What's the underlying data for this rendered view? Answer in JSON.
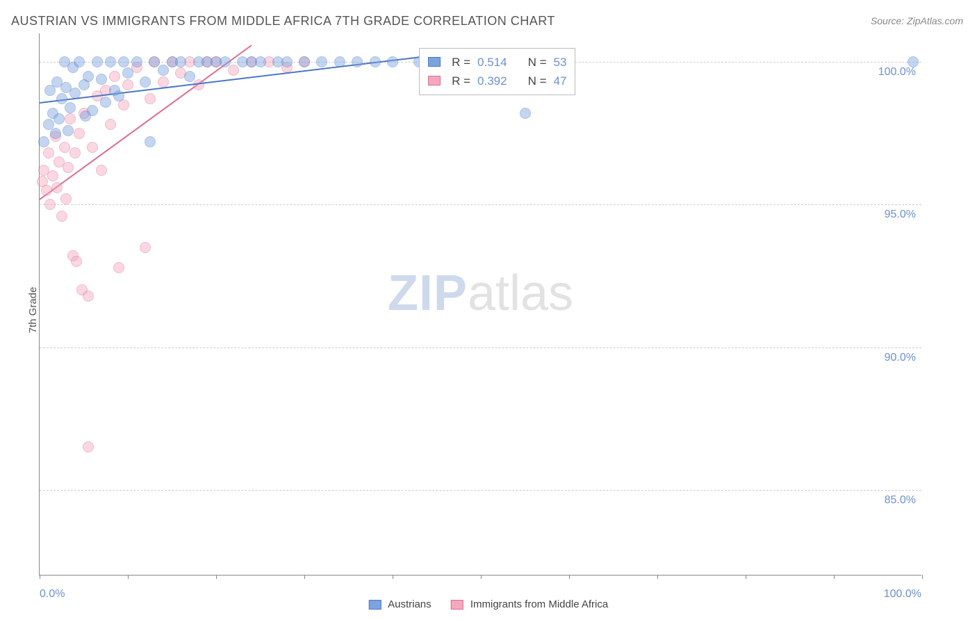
{
  "title": "AUSTRIAN VS IMMIGRANTS FROM MIDDLE AFRICA 7TH GRADE CORRELATION CHART",
  "source": "Source: ZipAtlas.com",
  "y_axis_title": "7th Grade",
  "watermark": {
    "zip": "ZIP",
    "atlas": "atlas"
  },
  "chart": {
    "type": "scatter",
    "background_color": "#ffffff",
    "grid_color": "#cccccc",
    "axis_color": "#888888",
    "tick_label_color": "#6b8fd4",
    "tick_fontsize": 16,
    "xlim": [
      0,
      100
    ],
    "ylim": [
      82,
      101
    ],
    "x_tick_positions": [
      0,
      10,
      20,
      30,
      40,
      50,
      60,
      70,
      80,
      90,
      100
    ],
    "x_first_label": "0.0%",
    "x_last_label": "100.0%",
    "y_grid": [
      {
        "value": 100,
        "label": "100.0%"
      },
      {
        "value": 95,
        "label": "95.0%"
      },
      {
        "value": 90,
        "label": "90.0%"
      },
      {
        "value": 85,
        "label": "85.0%"
      }
    ],
    "marker_radius": 8,
    "marker_opacity": 0.45,
    "line_width": 2
  },
  "series": {
    "austrians": {
      "label": "Austrians",
      "color_fill": "#7ba3e0",
      "color_stroke": "#4a77c4",
      "legend_stats": {
        "R_label": "R =",
        "R": "0.514",
        "N_label": "N =",
        "N": "53"
      },
      "trend": {
        "x1": 0,
        "y1": 98.6,
        "x2": 43,
        "y2": 100.2
      },
      "points": [
        [
          0.5,
          97.2
        ],
        [
          1.0,
          97.8
        ],
        [
          1.2,
          99.0
        ],
        [
          1.5,
          98.2
        ],
        [
          1.8,
          97.5
        ],
        [
          2.0,
          99.3
        ],
        [
          2.2,
          98.0
        ],
        [
          2.5,
          98.7
        ],
        [
          2.8,
          100.0
        ],
        [
          3.0,
          99.1
        ],
        [
          3.2,
          97.6
        ],
        [
          3.5,
          98.4
        ],
        [
          3.8,
          99.8
        ],
        [
          4.0,
          98.9
        ],
        [
          4.5,
          100.0
        ],
        [
          5.0,
          99.2
        ],
        [
          5.2,
          98.1
        ],
        [
          5.5,
          99.5
        ],
        [
          6.0,
          98.3
        ],
        [
          6.5,
          100.0
        ],
        [
          7.0,
          99.4
        ],
        [
          7.5,
          98.6
        ],
        [
          8.0,
          100.0
        ],
        [
          8.5,
          99.0
        ],
        [
          9.0,
          98.8
        ],
        [
          9.5,
          100.0
        ],
        [
          10.0,
          99.6
        ],
        [
          11.0,
          100.0
        ],
        [
          12.0,
          99.3
        ],
        [
          12.5,
          97.2
        ],
        [
          13.0,
          100.0
        ],
        [
          14.0,
          99.7
        ],
        [
          15.0,
          100.0
        ],
        [
          16.0,
          100.0
        ],
        [
          17.0,
          99.5
        ],
        [
          18.0,
          100.0
        ],
        [
          19.0,
          100.0
        ],
        [
          20.0,
          100.0
        ],
        [
          21.0,
          100.0
        ],
        [
          23.0,
          100.0
        ],
        [
          24.0,
          100.0
        ],
        [
          25.0,
          100.0
        ],
        [
          27.0,
          100.0
        ],
        [
          28.0,
          100.0
        ],
        [
          30.0,
          100.0
        ],
        [
          32.0,
          100.0
        ],
        [
          34.0,
          100.0
        ],
        [
          36.0,
          100.0
        ],
        [
          38.0,
          100.0
        ],
        [
          40.0,
          100.0
        ],
        [
          43.0,
          100.0
        ],
        [
          55.0,
          98.2
        ],
        [
          99.0,
          100.0
        ]
      ]
    },
    "immigrants": {
      "label": "Immigrants from Middle Africa",
      "color_fill": "#f4a8bd",
      "color_stroke": "#e06b8f",
      "legend_stats": {
        "R_label": "R =",
        "R": "0.392",
        "N_label": "N =",
        "N": "47"
      },
      "trend": {
        "x1": 0,
        "y1": 95.2,
        "x2": 24,
        "y2": 100.6
      },
      "points": [
        [
          0.3,
          95.8
        ],
        [
          0.5,
          96.2
        ],
        [
          0.8,
          95.5
        ],
        [
          1.0,
          96.8
        ],
        [
          1.2,
          95.0
        ],
        [
          1.5,
          96.0
        ],
        [
          1.8,
          97.4
        ],
        [
          2.0,
          95.6
        ],
        [
          2.2,
          96.5
        ],
        [
          2.5,
          94.6
        ],
        [
          2.8,
          97.0
        ],
        [
          3.0,
          95.2
        ],
        [
          3.2,
          96.3
        ],
        [
          3.5,
          98.0
        ],
        [
          3.8,
          93.2
        ],
        [
          4.0,
          96.8
        ],
        [
          4.2,
          93.0
        ],
        [
          4.5,
          97.5
        ],
        [
          4.8,
          92.0
        ],
        [
          5.0,
          98.2
        ],
        [
          5.5,
          91.8
        ],
        [
          5.5,
          86.5
        ],
        [
          6.0,
          97.0
        ],
        [
          6.5,
          98.8
        ],
        [
          7.0,
          96.2
        ],
        [
          7.5,
          99.0
        ],
        [
          8.0,
          97.8
        ],
        [
          8.5,
          99.5
        ],
        [
          9.0,
          92.8
        ],
        [
          9.5,
          98.5
        ],
        [
          10.0,
          99.2
        ],
        [
          11.0,
          99.8
        ],
        [
          12.0,
          93.5
        ],
        [
          12.5,
          98.7
        ],
        [
          13.0,
          100.0
        ],
        [
          14.0,
          99.3
        ],
        [
          15.0,
          100.0
        ],
        [
          16.0,
          99.6
        ],
        [
          17.0,
          100.0
        ],
        [
          18.0,
          99.2
        ],
        [
          19.0,
          100.0
        ],
        [
          20.0,
          100.0
        ],
        [
          22.0,
          99.7
        ],
        [
          24.0,
          100.0
        ],
        [
          26.0,
          100.0
        ],
        [
          28.0,
          99.8
        ],
        [
          30.0,
          100.0
        ]
      ]
    }
  },
  "legend_top_box": {
    "left_pct": 43,
    "top_y": 100.5
  }
}
